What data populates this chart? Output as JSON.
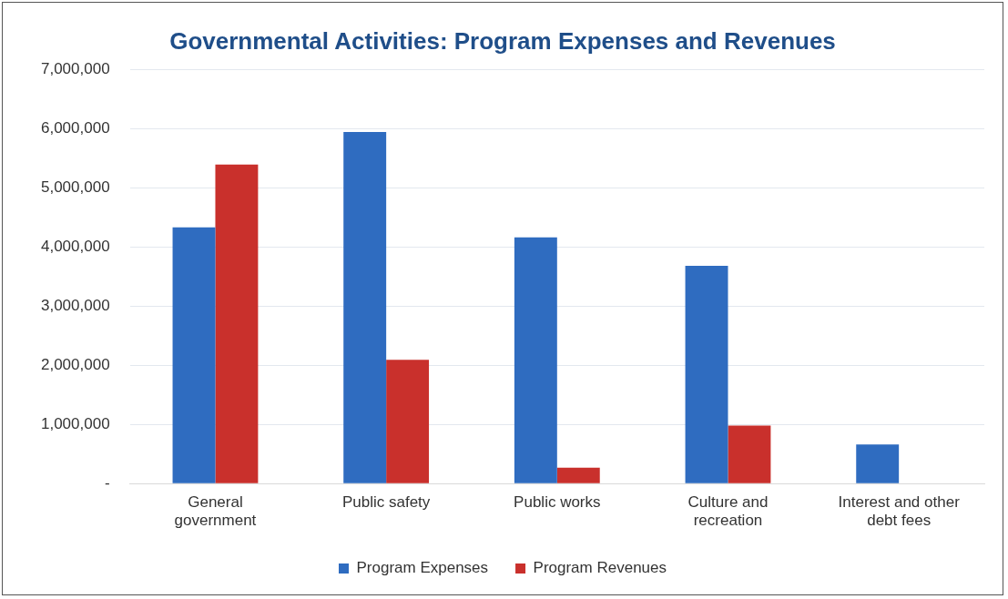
{
  "chart_data": {
    "type": "bar",
    "title": "Governmental Activities: Program Expenses and Revenues",
    "categories": [
      "General government",
      "Public safety",
      "Public works",
      "Culture and recreation",
      "Interest and other debt fees"
    ],
    "series": [
      {
        "name": "Program Expenses",
        "color": "#2f6cc0",
        "values": [
          4330000,
          5940000,
          4160000,
          3680000,
          660000
        ]
      },
      {
        "name": "Program Revenues",
        "color": "#c9302c",
        "values": [
          5390000,
          2090000,
          270000,
          980000,
          0
        ]
      }
    ],
    "ylim": [
      0,
      7000000
    ],
    "yticks": [
      {
        "value": 0,
        "label": "-"
      },
      {
        "value": 1000000,
        "label": "1,000,000"
      },
      {
        "value": 2000000,
        "label": "2,000,000"
      },
      {
        "value": 3000000,
        "label": "3,000,000"
      },
      {
        "value": 4000000,
        "label": "4,000,000"
      },
      {
        "value": 5000000,
        "label": "5,000,000"
      },
      {
        "value": 6000000,
        "label": "6,000,000"
      },
      {
        "value": 7000000,
        "label": "7,000,000"
      }
    ],
    "grid": "y",
    "legend": "bottom"
  }
}
